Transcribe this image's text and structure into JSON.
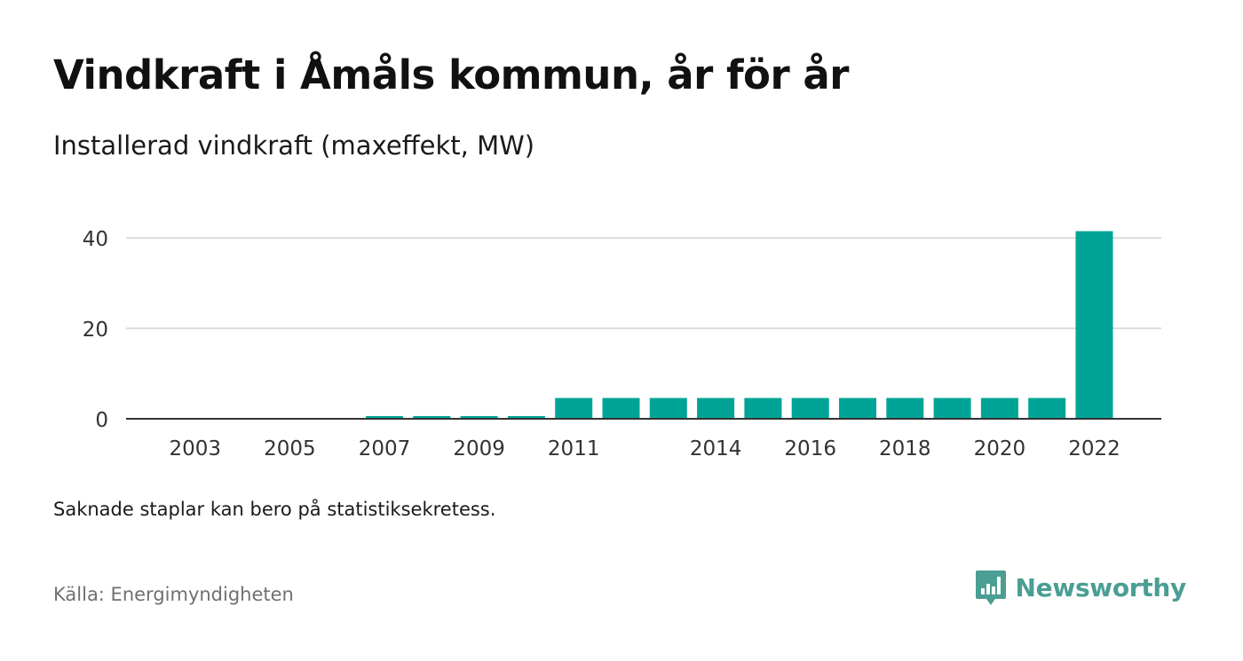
{
  "title": "Vindkraft i Åmåls kommun, år för år",
  "subtitle": "Installerad vindkraft (maxeffekt, MW)",
  "note": "Saknade staplar kan bero på statistiksekretess.",
  "source": "Källa: Energimyndigheten",
  "brand": {
    "name": "Newsworthy",
    "icon": "bar-chart-speech-bubble-icon",
    "color": "#4a9e93"
  },
  "colors": {
    "bar": "#00a496",
    "grid": "#dcdcdc",
    "axis": "#333333",
    "tick_text": "#333333"
  },
  "chart_data": {
    "type": "bar",
    "title": "Vindkraft i Åmåls kommun, år för år",
    "subtitle": "Installerad vindkraft (maxeffekt, MW)",
    "xlabel": "",
    "ylabel": "",
    "ylim": [
      0,
      42
    ],
    "yticks": [
      0,
      20,
      40
    ],
    "grid": true,
    "categories": [
      "2002",
      "2003",
      "2004",
      "2005",
      "2006",
      "2007",
      "2008",
      "2009",
      "2010",
      "2011",
      "2012",
      "2013",
      "2014",
      "2015",
      "2016",
      "2017",
      "2018",
      "2019",
      "2020",
      "2021",
      "2022"
    ],
    "x_tick_labels": [
      "2003",
      "2005",
      "2007",
      "2009",
      "2011",
      "2014",
      "2016",
      "2018",
      "2020",
      "2022"
    ],
    "values": [
      0,
      0,
      0,
      0,
      0,
      0.6,
      0.6,
      0.6,
      0.6,
      4.6,
      4.6,
      4.6,
      4.6,
      4.6,
      4.6,
      4.6,
      4.6,
      4.6,
      4.6,
      4.6,
      41.5
    ]
  }
}
